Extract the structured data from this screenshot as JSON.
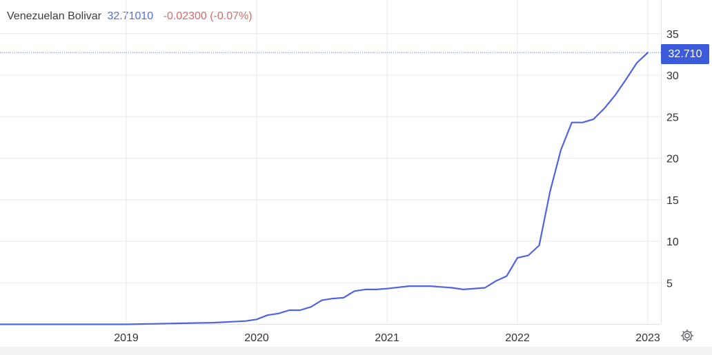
{
  "header": {
    "instrument": "Venezuelan Bolivar",
    "price": "32.71010",
    "change": "-0.02300 (-0.07%)"
  },
  "price_tag": "32.710",
  "colors": {
    "line": "#4f63e0",
    "tag": "#3b5bdb",
    "change": "#d26b6b",
    "grid": "#e6e8ec"
  },
  "icons": {
    "settings": "gear-icon"
  },
  "chart_data": {
    "type": "line",
    "title": "",
    "xlabel": "",
    "ylabel": "",
    "x_ticks": [
      "2019",
      "2020",
      "2021",
      "2022",
      "2023"
    ],
    "y_ticks": [
      "5",
      "10",
      "15",
      "20",
      "25",
      "30",
      "35"
    ],
    "ylim": [
      0,
      38.6
    ],
    "xlim": [
      "2018-01",
      "2023-02"
    ],
    "grid": true,
    "last_value": 32.71,
    "series": [
      {
        "x": [
          "2018-01",
          "2018-07",
          "2019-01",
          "2019-05",
          "2019-09",
          "2019-12",
          "2020-01",
          "2020-02",
          "2020-03",
          "2020-04",
          "2020-05",
          "2020-06",
          "2020-07",
          "2020-08",
          "2020-09",
          "2020-10",
          "2020-11",
          "2020-12",
          "2021-01",
          "2021-03",
          "2021-05",
          "2021-07",
          "2021-08",
          "2021-10",
          "2021-11",
          "2021-12",
          "2022-01",
          "2022-02",
          "2022-03",
          "2022-04",
          "2022-05",
          "2022-06",
          "2022-07",
          "2022-08",
          "2022-09",
          "2022-10",
          "2022-11",
          "2022-12",
          "2023-01"
        ],
        "values": [
          0.0,
          0.0,
          0.0,
          0.1,
          0.2,
          0.4,
          0.6,
          1.1,
          1.3,
          1.7,
          1.7,
          2.1,
          2.9,
          3.1,
          3.2,
          4.0,
          4.2,
          4.2,
          4.3,
          4.6,
          4.6,
          4.4,
          4.2,
          4.4,
          5.2,
          5.8,
          8.0,
          8.3,
          9.5,
          16.0,
          21.0,
          24.3,
          24.3,
          24.7,
          26.0,
          27.6,
          29.5,
          31.5,
          32.71
        ]
      }
    ]
  }
}
